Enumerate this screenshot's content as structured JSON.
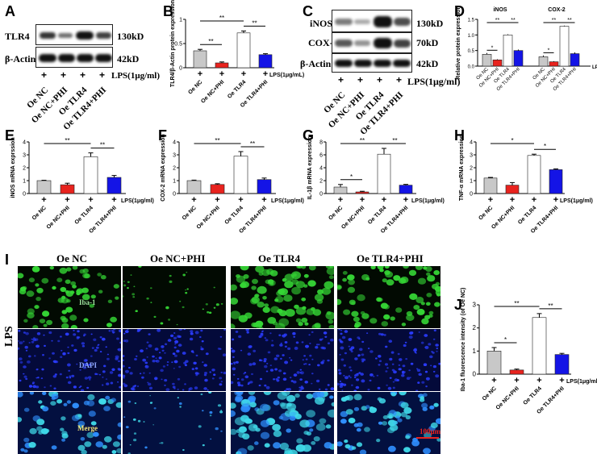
{
  "panel_letters": {
    "A": "A",
    "B": "B",
    "C": "C",
    "D": "D",
    "E": "E",
    "F": "F",
    "G": "G",
    "H": "H",
    "I": "I",
    "J": "J"
  },
  "groups": [
    "Oe NC",
    "Oe NC+PHI",
    "Oe TLR4",
    "Oe TLR4+PHI"
  ],
  "lps_label": "LPS(1μg/ml)",
  "lps_label_b": "LPS(1μg/mL)",
  "plus": "+",
  "blots": {
    "A": {
      "rows": [
        {
          "protein": "TLR4",
          "kd": "130kD"
        },
        {
          "protein": "β-Actin",
          "kd": "42kD"
        }
      ]
    },
    "C": {
      "rows": [
        {
          "protein": "iNOS",
          "kd": "130kD"
        },
        {
          "protein": "COX-2",
          "kd": "70kD"
        },
        {
          "protein": "β-Actin",
          "kd": "42kD"
        }
      ]
    }
  },
  "colors": {
    "c1": "#c8c8c8",
    "c2": "#e8231e",
    "c3": "#ffffff",
    "c4": "#1414e6"
  },
  "sig": {
    "single": "*",
    "double": "**"
  },
  "chart_data": [
    {
      "id": "B",
      "type": "bar",
      "categories": [
        "Oe NC",
        "Oe NC+PHI",
        "Oe TLR4",
        "Oe TLR4+PHI"
      ],
      "values": [
        0.35,
        0.1,
        0.72,
        0.27
      ],
      "errors": [
        0.03,
        0.02,
        0.04,
        0.02
      ],
      "ylim": [
        0,
        1.0
      ],
      "yticks": [
        0.0,
        0.5,
        1.0
      ],
      "ylabel": "TLR4/β-Actin protein expression",
      "xlabel": "LPS(1μg/mL)",
      "sig": [
        {
          "a": 0,
          "b": 1,
          "t": "**"
        },
        {
          "a": 0,
          "b": 2,
          "t": "**"
        },
        {
          "a": 2,
          "b": 3,
          "t": "**"
        }
      ]
    },
    {
      "id": "D",
      "type": "bar",
      "title": "iNOS / COX-2",
      "panels": [
        {
          "title": "iNOS",
          "categories": [
            "Oe NC",
            "Oe NC+PHI",
            "Oe TLR4",
            "Oe TLR4+PHI"
          ],
          "values": [
            0.38,
            0.2,
            1.0,
            0.5
          ],
          "errors": [
            0.04,
            0.02,
            0.02,
            0.03
          ],
          "sig": [
            {
              "a": 0,
              "b": 1,
              "t": "*"
            },
            {
              "a": 0,
              "b": 2,
              "t": "**"
            },
            {
              "a": 2,
              "b": 3,
              "t": "**"
            }
          ]
        },
        {
          "title": "COX-2",
          "categories": [
            "Oe NC",
            "Oe NC+PHI",
            "Oe TLR4",
            "Oe TLR4+PHI"
          ],
          "values": [
            0.3,
            0.14,
            1.28,
            0.4
          ],
          "errors": [
            0.04,
            0.02,
            0.02,
            0.04
          ],
          "sig": [
            {
              "a": 0,
              "b": 1,
              "t": "*"
            },
            {
              "a": 0,
              "b": 2,
              "t": "**"
            },
            {
              "a": 2,
              "b": 3,
              "t": "**"
            }
          ]
        }
      ],
      "ylim": [
        0,
        1.5
      ],
      "yticks": [
        0.0,
        0.5,
        1.0,
        1.5
      ],
      "ylabel": "Relative protein expression",
      "xlabel": "LPS(1μg/ml)"
    },
    {
      "id": "E",
      "type": "bar",
      "categories": [
        "Oe NC",
        "Oe NC+PHI",
        "Oe TLR4",
        "Oe TLR4+PHI"
      ],
      "values": [
        1.0,
        0.68,
        2.85,
        1.25
      ],
      "errors": [
        0.03,
        0.12,
        0.3,
        0.15
      ],
      "ylim": [
        0,
        4
      ],
      "yticks": [
        0,
        1,
        2,
        3,
        4
      ],
      "ylabel": "iNOS mRNA exprssion",
      "xlabel": "LPS(1μg/ml)",
      "sig": [
        {
          "a": 0,
          "b": 2,
          "t": "**"
        },
        {
          "a": 2,
          "b": 3,
          "t": "**"
        }
      ]
    },
    {
      "id": "F",
      "type": "bar",
      "categories": [
        "Oe NC",
        "Oe NC+PHI",
        "Oe TLR4",
        "Oe TLR4+PHI"
      ],
      "values": [
        1.0,
        0.7,
        2.9,
        1.08
      ],
      "errors": [
        0.04,
        0.06,
        0.35,
        0.12
      ],
      "ylim": [
        0,
        4
      ],
      "yticks": [
        0,
        1,
        2,
        3,
        4
      ],
      "ylabel": "COX-2 mRNA expression",
      "xlabel": "LPS(1μg/ml)",
      "sig": [
        {
          "a": 0,
          "b": 2,
          "t": "**"
        },
        {
          "a": 2,
          "b": 3,
          "t": "**"
        }
      ]
    },
    {
      "id": "G",
      "type": "bar",
      "categories": [
        "Oe NC",
        "Oe NC+PHI",
        "Oe TLR4",
        "Oe TLR4+PHI"
      ],
      "values": [
        1.0,
        0.25,
        6.1,
        1.3
      ],
      "errors": [
        0.4,
        0.1,
        0.9,
        0.12
      ],
      "ylim": [
        0,
        8
      ],
      "yticks": [
        0,
        2,
        4,
        6,
        8
      ],
      "ylabel": "IL-1β mRNA expression",
      "xlabel": "LPS(1μg/ml)",
      "sig": [
        {
          "a": 0,
          "b": 1,
          "t": "*"
        },
        {
          "a": 0,
          "b": 2,
          "t": "**"
        },
        {
          "a": 2,
          "b": 3,
          "t": "**"
        }
      ]
    },
    {
      "id": "H",
      "type": "bar",
      "categories": [
        "Oe NC",
        "Oe NC+PHI",
        "Oe TLR4",
        "Oe TLR4+PHI"
      ],
      "values": [
        1.2,
        0.65,
        2.95,
        1.85
      ],
      "errors": [
        0.05,
        0.2,
        0.1,
        0.06
      ],
      "ylim": [
        0,
        4
      ],
      "yticks": [
        0,
        1,
        2,
        3,
        4
      ],
      "ylabel": "TNF-α mRNA expression",
      "xlabel": "LPS(1μg/ml)",
      "sig": [
        {
          "a": 0,
          "b": 2,
          "t": "*"
        },
        {
          "a": 2,
          "b": 3,
          "t": "*"
        }
      ]
    },
    {
      "id": "J",
      "type": "bar",
      "categories": [
        "Oe NC",
        "Oe NC+PHI",
        "Oe TLR4",
        "Oe TLR4+PHI"
      ],
      "values": [
        1.0,
        0.18,
        2.45,
        0.85
      ],
      "errors": [
        0.15,
        0.04,
        0.17,
        0.05
      ],
      "ylim": [
        0,
        3
      ],
      "yticks": [
        0,
        1,
        2,
        3
      ],
      "ylabel": "Iba-1 fluorescence intensity (of Oe NC)",
      "xlabel": "LPS(1μg/ml)",
      "sig": [
        {
          "a": 0,
          "b": 1,
          "t": "*"
        },
        {
          "a": 0,
          "b": 2,
          "t": "**"
        },
        {
          "a": 2,
          "b": 3,
          "t": "**"
        }
      ]
    }
  ],
  "micro": {
    "columns": [
      "Oe NC",
      "Oe NC+PHI",
      "Oe TLR4",
      "Oe TLR4+PHI"
    ],
    "rows": [
      {
        "label": "Iba-1"
      },
      {
        "label": "DAPI"
      },
      {
        "label": "Merge"
      }
    ],
    "side_label": "LPS",
    "scale_bar": "100μm",
    "density": [
      0.5,
      0.18,
      0.8,
      0.55
    ]
  }
}
